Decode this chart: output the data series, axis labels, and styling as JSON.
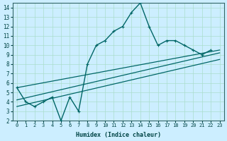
{
  "xlabel": "Humidex (Indice chaleur)",
  "bg_color": "#cceeff",
  "line_color": "#006666",
  "xlim": [
    -0.5,
    23.5
  ],
  "ylim": [
    2,
    14.5
  ],
  "xticks": [
    0,
    1,
    2,
    3,
    4,
    5,
    6,
    7,
    8,
    9,
    10,
    11,
    12,
    13,
    14,
    15,
    16,
    17,
    18,
    19,
    20,
    21,
    22,
    23
  ],
  "yticks": [
    2,
    3,
    4,
    5,
    6,
    7,
    8,
    9,
    10,
    11,
    12,
    13,
    14
  ],
  "main_x": [
    0,
    1,
    2,
    3,
    4,
    5,
    6,
    7,
    8,
    9,
    10,
    11,
    12,
    13,
    14,
    15,
    16,
    17,
    18,
    19,
    20,
    21,
    22
  ],
  "main_y": [
    5.5,
    4.0,
    3.5,
    4.0,
    4.5,
    2.0,
    4.5,
    3.0,
    8.0,
    10.0,
    10.5,
    11.5,
    12.0,
    13.5,
    14.5,
    12.0,
    10.0,
    10.5,
    10.5,
    10.0,
    9.5,
    9.0,
    9.5
  ],
  "trend1_x": [
    0,
    23
  ],
  "trend1_y": [
    4.2,
    9.2
  ],
  "trend2_x": [
    0,
    23
  ],
  "trend2_y": [
    5.5,
    9.5
  ],
  "trend3_x": [
    0,
    23
  ],
  "trend3_y": [
    3.5,
    8.5
  ],
  "grid_color": "#aaddcc",
  "figsize": [
    3.2,
    2.0
  ],
  "dpi": 100
}
